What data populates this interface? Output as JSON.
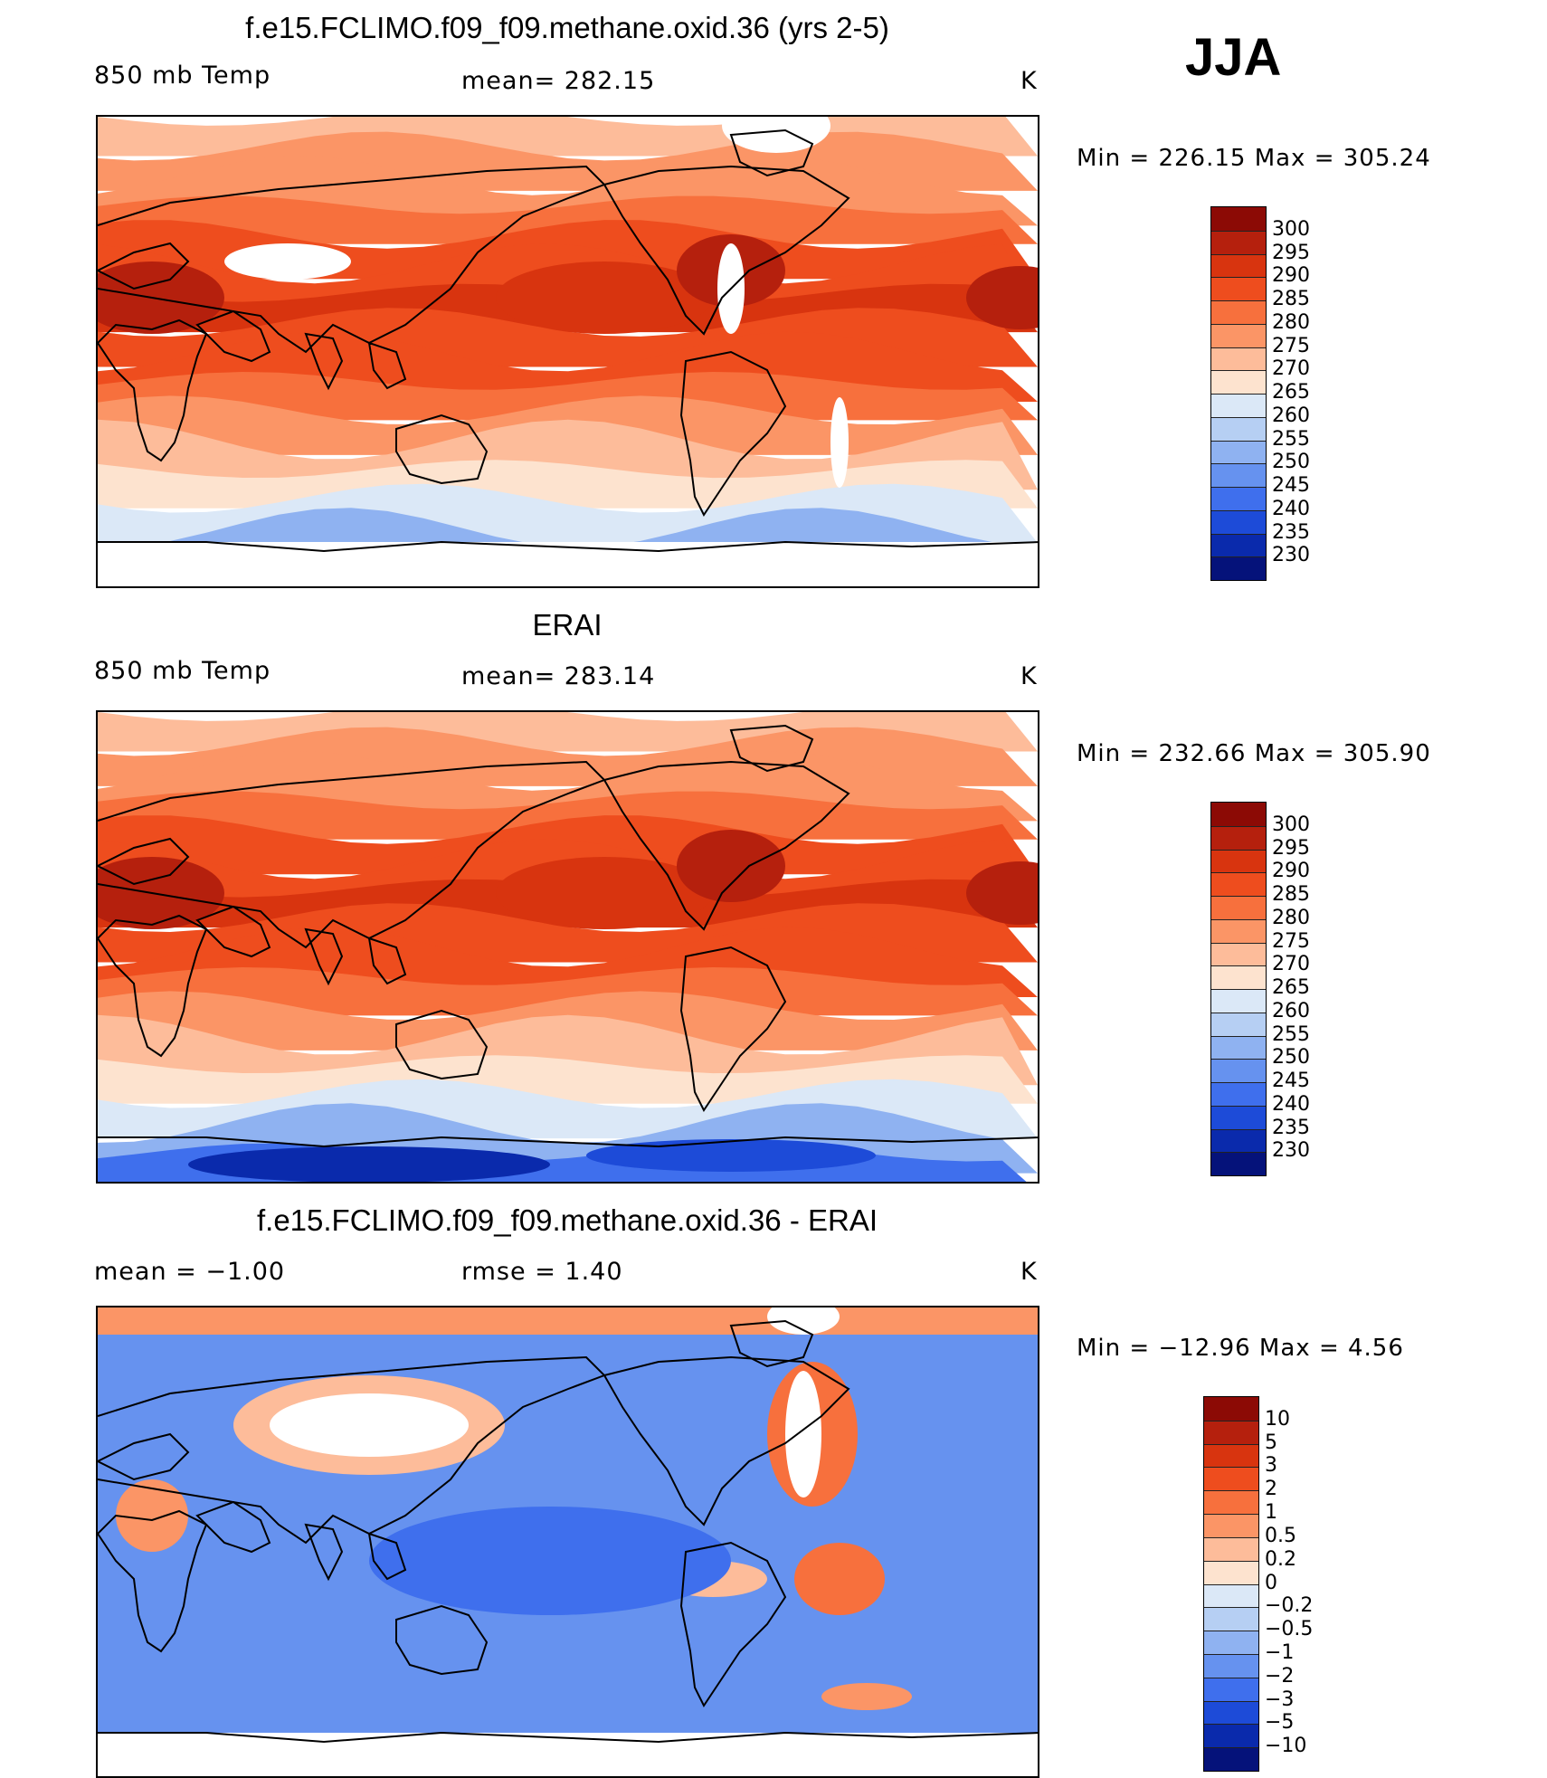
{
  "season": "JJA",
  "panels": [
    {
      "title": "f.e15.FCLIMO.f09_f09.methane.oxid.36 (yrs 2-5)",
      "left": "850 mb Temp",
      "center": "mean= 282.15",
      "right": "K",
      "minmax": "Min = 226.15 Max = 305.24",
      "colorbar": {
        "labels": [
          "300",
          "295",
          "290",
          "285",
          "280",
          "275",
          "270",
          "265",
          "260",
          "255",
          "250",
          "245",
          "240",
          "235",
          "230"
        ],
        "colors": [
          "#8c0a05",
          "#b5200d",
          "#d8340f",
          "#ee4d1e",
          "#f7703d",
          "#fb9566",
          "#fdbc9a",
          "#fde3cf",
          "#dbe8f7",
          "#b6cff3",
          "#8fb2f1",
          "#6692ef",
          "#3f6fed",
          "#1d4bd8",
          "#0a2aac",
          "#05127a"
        ]
      },
      "chart_data": {
        "type": "heatmap",
        "variable": "850 mb Temp",
        "units": "K",
        "mean": 282.15,
        "min": 226.15,
        "max": 305.24,
        "levels": [
          230,
          235,
          240,
          245,
          250,
          255,
          260,
          265,
          270,
          275,
          280,
          285,
          290,
          295,
          300
        ]
      }
    },
    {
      "title": "ERAI",
      "left": "850 mb Temp",
      "center": "mean= 283.14",
      "right": "K",
      "minmax": "Min = 232.66 Max = 305.90",
      "colorbar": {
        "labels": [
          "300",
          "295",
          "290",
          "285",
          "280",
          "275",
          "270",
          "265",
          "260",
          "255",
          "250",
          "245",
          "240",
          "235",
          "230"
        ],
        "colors": [
          "#8c0a05",
          "#b5200d",
          "#d8340f",
          "#ee4d1e",
          "#f7703d",
          "#fb9566",
          "#fdbc9a",
          "#fde3cf",
          "#dbe8f7",
          "#b6cff3",
          "#8fb2f1",
          "#6692ef",
          "#3f6fed",
          "#1d4bd8",
          "#0a2aac",
          "#05127a"
        ]
      },
      "chart_data": {
        "type": "heatmap",
        "variable": "850 mb Temp",
        "units": "K",
        "mean": 283.14,
        "min": 232.66,
        "max": 305.9,
        "levels": [
          230,
          235,
          240,
          245,
          250,
          255,
          260,
          265,
          270,
          275,
          280,
          285,
          290,
          295,
          300
        ]
      }
    },
    {
      "title": "f.e15.FCLIMO.f09_f09.methane.oxid.36 - ERAI",
      "left": "mean =   −1.00",
      "center": "rmse =    1.40",
      "right": "K",
      "minmax": "Min = −12.96 Max =    4.56",
      "colorbar": {
        "labels": [
          "10",
          "5",
          "3",
          "2",
          "1",
          "0.5",
          "0.2",
          "0",
          "−0.2",
          "−0.5",
          "−1",
          "−2",
          "−3",
          "−5",
          "−10"
        ],
        "colors": [
          "#8c0a05",
          "#b5200d",
          "#d8340f",
          "#ee4d1e",
          "#f7703d",
          "#fb9566",
          "#fdbc9a",
          "#fde3cf",
          "#dbe8f7",
          "#b6cff3",
          "#8fb2f1",
          "#6692ef",
          "#3f6fed",
          "#1d4bd8",
          "#0a2aac",
          "#05127a"
        ]
      },
      "chart_data": {
        "type": "heatmap",
        "variable": "850 mb Temp difference",
        "units": "K",
        "mean": -1.0,
        "rmse": 1.4,
        "min": -12.96,
        "max": 4.56,
        "levels": [
          -10,
          -5,
          -3,
          -2,
          -1,
          -0.5,
          -0.2,
          0,
          0.2,
          0.5,
          1,
          2,
          3,
          5,
          10
        ]
      }
    }
  ]
}
